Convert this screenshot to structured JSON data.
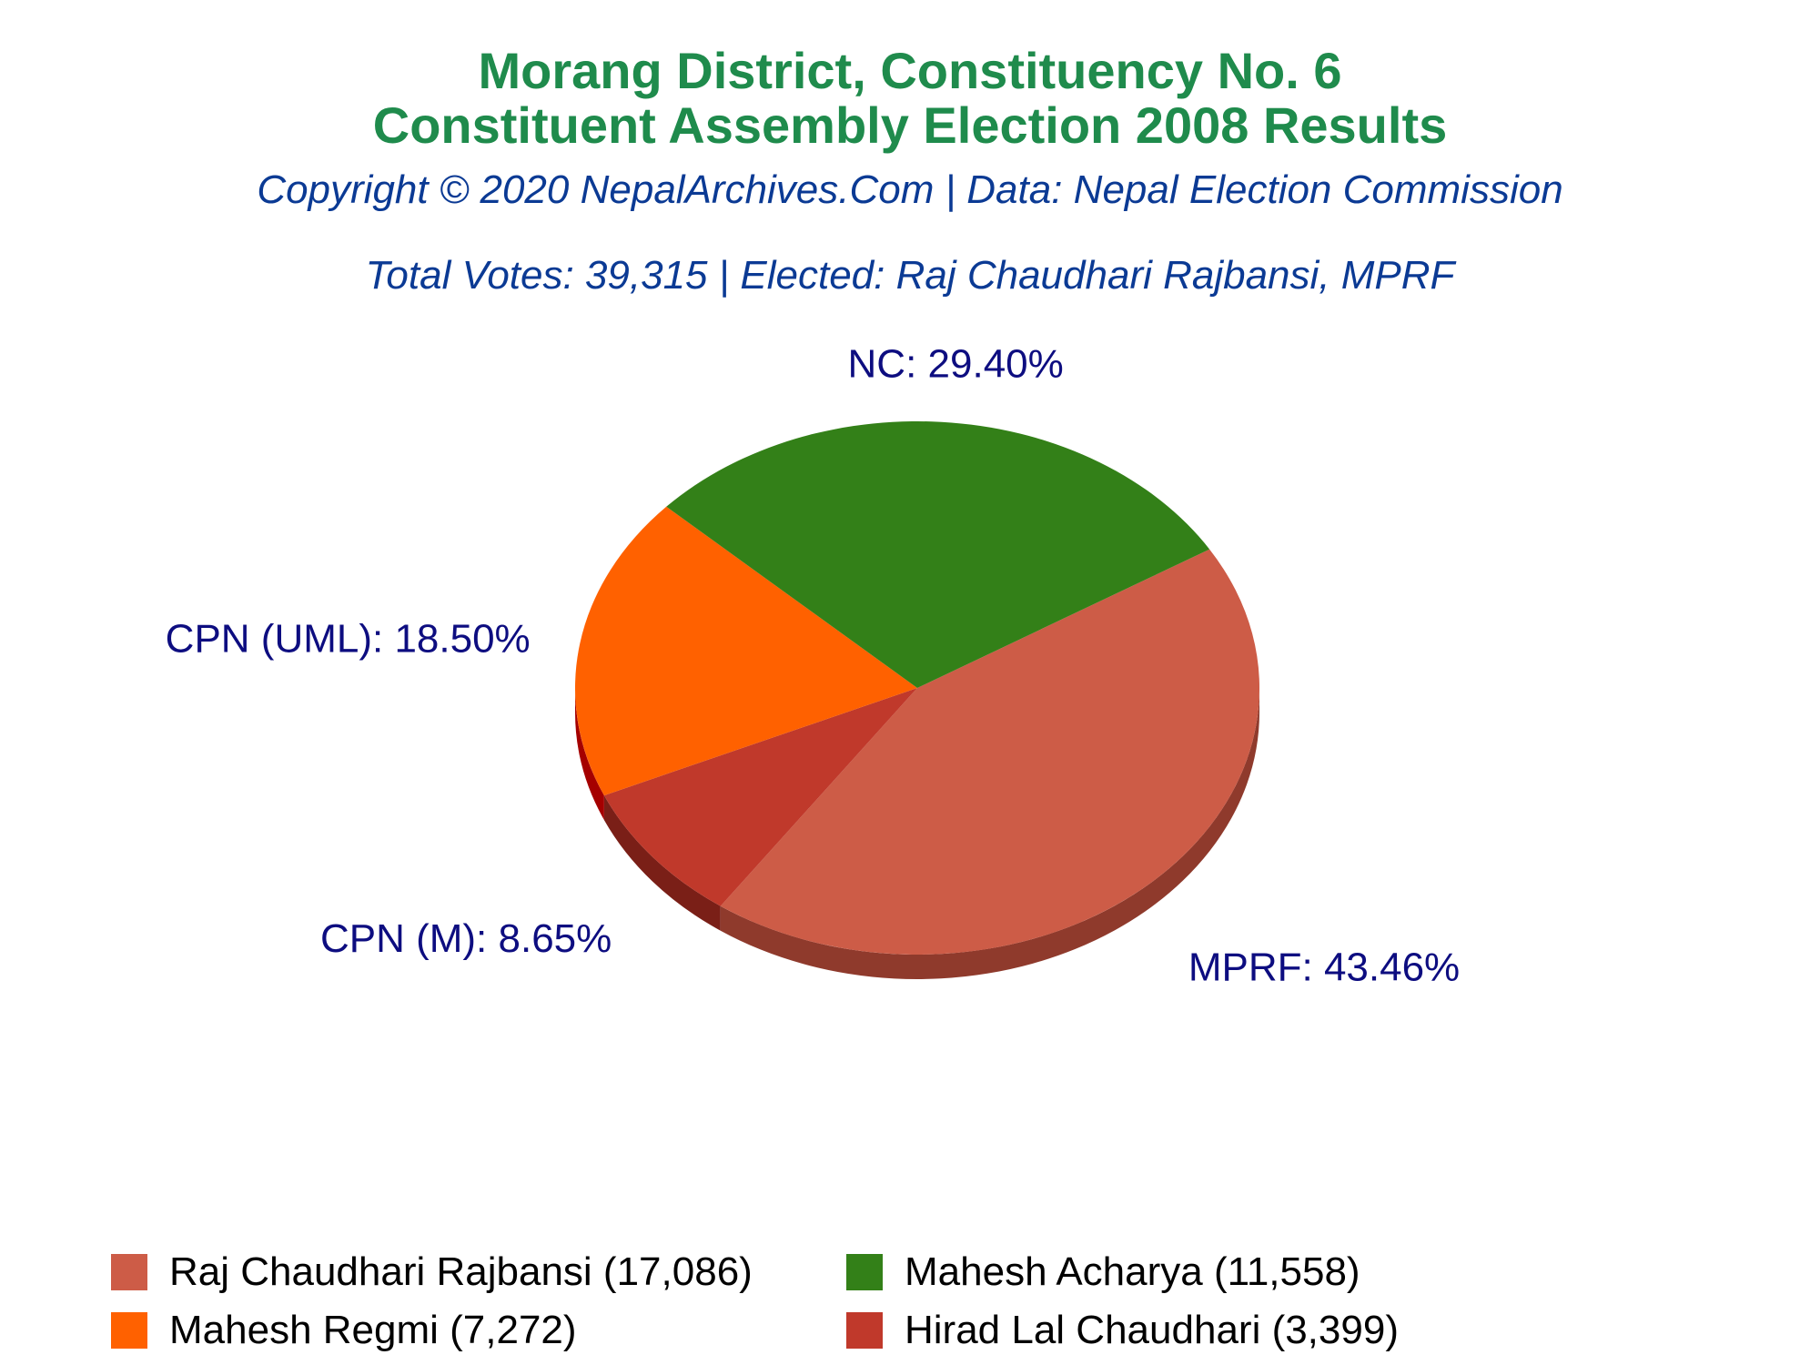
{
  "header": {
    "title_line1": "Morang District, Constituency No. 6",
    "title_line2": "Constituent Assembly Election 2008 Results",
    "copyright": "Copyright © 2020 NepalArchives.Com | Data: Nepal Election Commission",
    "summary": "Total Votes: 39,315 | Elected: Raj Chaudhari Rajbansi, MPRF"
  },
  "colors": {
    "title": "#1f8b4c",
    "subtitle": "#0b3a94",
    "label": "#0d0d80"
  },
  "chart_data": {
    "type": "pie",
    "style": "3d",
    "total_votes": 39315,
    "slices": [
      {
        "party": "MPRF",
        "label": "MPRF: 43.46%",
        "percent": 43.46,
        "candidate": "Raj Chaudhari Rajbansi",
        "votes": 17086,
        "legend": "Raj Chaudhari Rajbansi (17,086)",
        "color": "#cd5c47",
        "side": "#8f3a2c"
      },
      {
        "party": "CPN (M)",
        "label": "CPN (M): 8.65%",
        "percent": 8.65,
        "candidate": "Hirad Lal Chaudhari",
        "votes": 3399,
        "legend": "Hirad Lal Chaudhari (3,399)",
        "color": "#c0392b",
        "side": "#7a1f17"
      },
      {
        "party": "CPN (UML)",
        "label": "CPN (UML): 18.50%",
        "percent": 18.5,
        "candidate": "Mahesh Regmi",
        "votes": 7272,
        "legend": "Mahesh Regmi (7,272)",
        "color": "#ff6100",
        "side": "#a50000"
      },
      {
        "party": "NC",
        "label": "NC: 29.40%",
        "percent": 29.4,
        "candidate": "Mahesh Acharya",
        "votes": 11558,
        "legend": "Mahesh Acharya (11,558)",
        "color": "#338018",
        "side": "#002800"
      }
    ],
    "legend_order": [
      0,
      3,
      2,
      1
    ],
    "legend_placement": "bottom"
  }
}
